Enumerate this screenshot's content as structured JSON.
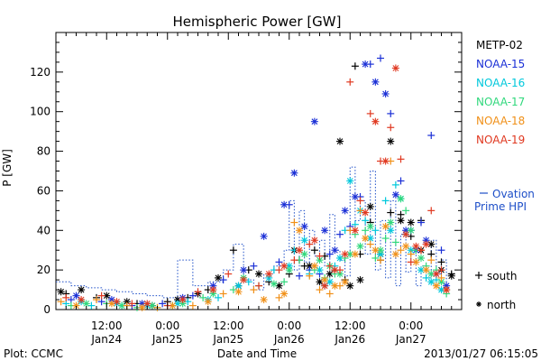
{
  "chart_data": {
    "type": "scatter",
    "title": "Hemispheric Power [GW]",
    "xlabel": "Date and Time",
    "ylabel": "P [GW]",
    "xlim": [
      -22,
      58
    ],
    "ylim": [
      0,
      140
    ],
    "x_units": "hours from 2013-01-25 00:00",
    "yticks": [
      0,
      20,
      40,
      60,
      80,
      100,
      120
    ],
    "xticks": [
      {
        "x": -12,
        "time": "12:00",
        "date": "Jan24"
      },
      {
        "x": 0,
        "time": "0:00",
        "date": "Jan25"
      },
      {
        "x": 12,
        "time": "12:00",
        "date": "Jan25"
      },
      {
        "x": 24,
        "time": "0:00",
        "date": "Jan26"
      },
      {
        "x": 36,
        "time": "12:00",
        "date": "Jan26"
      },
      {
        "x": 48,
        "time": "0:00",
        "date": "Jan27"
      }
    ],
    "legend": {
      "placement": "right",
      "series_label": "Ovation Prime HPI",
      "south_label": "south",
      "north_label": "north"
    },
    "footer": {
      "left": "Plot: CCMC",
      "right": "2013/01/27 06:15:05"
    },
    "ovation": {
      "name": "Ovation Prime HPI",
      "color": "#1e4fc8",
      "x": [
        -22,
        -19,
        -16,
        -13,
        -10,
        -7,
        -4,
        -1,
        2,
        5,
        8,
        11,
        13,
        15,
        17,
        19,
        21,
        23,
        24,
        25,
        26,
        27,
        28,
        29,
        30,
        31,
        32,
        33,
        34,
        35,
        36,
        37,
        38,
        39,
        40,
        41,
        42,
        43,
        44,
        45,
        46,
        47,
        48,
        49,
        50,
        51,
        52,
        53,
        54,
        55
      ],
      "y": [
        14,
        12,
        11,
        10,
        9,
        8,
        7,
        6,
        25,
        12,
        14,
        20,
        33,
        15,
        10,
        18,
        22,
        30,
        55,
        20,
        50,
        24,
        40,
        27,
        35,
        22,
        48,
        30,
        25,
        17,
        72,
        45,
        55,
        28,
        70,
        20,
        45,
        16,
        55,
        12,
        38,
        19,
        30,
        12,
        22,
        16,
        35,
        18,
        25,
        8
      ]
    },
    "series": [
      {
        "name": "METP-02",
        "color": "#000000",
        "south": [
          [
            -20,
            8
          ],
          [
            -14,
            6
          ],
          [
            -6,
            3
          ],
          [
            0,
            4
          ],
          [
            4,
            6
          ],
          [
            8,
            10
          ],
          [
            13,
            30
          ],
          [
            16,
            20
          ],
          [
            20,
            14
          ],
          [
            24,
            18
          ],
          [
            26,
            25
          ],
          [
            27,
            22
          ],
          [
            29,
            30
          ],
          [
            31,
            27
          ],
          [
            33,
            20
          ],
          [
            35,
            15
          ],
          [
            37,
            123
          ],
          [
            38,
            28
          ],
          [
            40,
            44
          ],
          [
            42,
            25
          ],
          [
            44,
            49
          ],
          [
            46,
            48
          ],
          [
            48,
            37
          ],
          [
            50,
            45
          ],
          [
            52,
            28
          ],
          [
            54,
            24
          ],
          [
            56,
            18
          ]
        ],
        "north": [
          [
            -21,
            9
          ],
          [
            -17,
            10
          ],
          [
            -12,
            7
          ],
          [
            -8,
            4
          ],
          [
            -3,
            2
          ],
          [
            2,
            5
          ],
          [
            6,
            8
          ],
          [
            10,
            16
          ],
          [
            14,
            12
          ],
          [
            18,
            18
          ],
          [
            22,
            12
          ],
          [
            25,
            30
          ],
          [
            28,
            22
          ],
          [
            30,
            14
          ],
          [
            32,
            18
          ],
          [
            34,
            85
          ],
          [
            36,
            12
          ],
          [
            38,
            15
          ],
          [
            40,
            52
          ],
          [
            42,
            28
          ],
          [
            44,
            85
          ],
          [
            46,
            45
          ],
          [
            48,
            44
          ],
          [
            50,
            30
          ],
          [
            52,
            33
          ],
          [
            54,
            20
          ],
          [
            56,
            17
          ]
        ]
      },
      {
        "name": "NOAA-15",
        "color": "#1a2fd6",
        "south": [
          [
            -19,
            5
          ],
          [
            -13,
            4
          ],
          [
            -7,
            2
          ],
          [
            -1,
            3
          ],
          [
            5,
            7
          ],
          [
            11,
            15
          ],
          [
            17,
            22
          ],
          [
            22,
            24
          ],
          [
            24,
            53
          ],
          [
            26,
            17
          ],
          [
            28,
            20
          ],
          [
            30,
            18
          ],
          [
            32,
            28
          ],
          [
            34,
            38
          ],
          [
            36,
            42
          ],
          [
            38,
            57
          ],
          [
            40,
            124
          ],
          [
            42,
            127
          ],
          [
            44,
            99
          ],
          [
            46,
            65
          ],
          [
            48,
            40
          ],
          [
            50,
            44
          ],
          [
            52,
            88
          ],
          [
            54,
            30
          ]
        ],
        "north": [
          [
            -18,
            7
          ],
          [
            -11,
            5
          ],
          [
            -5,
            3
          ],
          [
            3,
            6
          ],
          [
            9,
            12
          ],
          [
            15,
            20
          ],
          [
            19,
            37
          ],
          [
            23,
            53
          ],
          [
            25,
            69
          ],
          [
            27,
            42
          ],
          [
            29,
            95
          ],
          [
            31,
            40
          ],
          [
            33,
            30
          ],
          [
            35,
            50
          ],
          [
            37,
            57
          ],
          [
            39,
            124
          ],
          [
            41,
            115
          ],
          [
            43,
            109
          ],
          [
            45,
            58
          ],
          [
            47,
            40
          ],
          [
            49,
            30
          ],
          [
            51,
            35
          ],
          [
            53,
            18
          ],
          [
            55,
            12
          ]
        ]
      },
      {
        "name": "NOAA-16",
        "color": "#00c8dc",
        "south": [
          [
            -20,
            3
          ],
          [
            -15,
            2
          ],
          [
            -9,
            2
          ],
          [
            -2,
            1
          ],
          [
            4,
            4
          ],
          [
            10,
            6
          ],
          [
            16,
            14
          ],
          [
            21,
            20
          ],
          [
            25,
            30
          ],
          [
            28,
            18
          ],
          [
            31,
            12
          ],
          [
            33,
            22
          ],
          [
            35,
            40
          ],
          [
            37,
            43
          ],
          [
            39,
            45
          ],
          [
            41,
            40
          ],
          [
            43,
            55
          ],
          [
            45,
            63
          ],
          [
            47,
            38
          ],
          [
            49,
            30
          ],
          [
            51,
            16
          ],
          [
            53,
            15
          ],
          [
            55,
            10
          ]
        ],
        "north": [
          [
            -17,
            4
          ],
          [
            -10,
            3
          ],
          [
            -4,
            2
          ],
          [
            2,
            3
          ],
          [
            8,
            5
          ],
          [
            14,
            12
          ],
          [
            20,
            16
          ],
          [
            24,
            22
          ],
          [
            27,
            35
          ],
          [
            30,
            20
          ],
          [
            32,
            14
          ],
          [
            34,
            26
          ],
          [
            36,
            65
          ],
          [
            38,
            50
          ],
          [
            40,
            36
          ],
          [
            42,
            28
          ],
          [
            44,
            40
          ],
          [
            46,
            56
          ],
          [
            48,
            30
          ],
          [
            50,
            20
          ],
          [
            52,
            14
          ],
          [
            54,
            10
          ]
        ]
      },
      {
        "name": "NOAA-17",
        "color": "#30d87c",
        "south": [
          [
            -19,
            2
          ],
          [
            -12,
            3
          ],
          [
            -6,
            1
          ],
          [
            1,
            2
          ],
          [
            7,
            6
          ],
          [
            13,
            10
          ],
          [
            18,
            12
          ],
          [
            23,
            14
          ],
          [
            26,
            25
          ],
          [
            29,
            20
          ],
          [
            31,
            16
          ],
          [
            33,
            18
          ],
          [
            35,
            26
          ],
          [
            37,
            38
          ],
          [
            39,
            40
          ],
          [
            41,
            26
          ],
          [
            43,
            36
          ],
          [
            45,
            34
          ],
          [
            47,
            50
          ],
          [
            49,
            30
          ],
          [
            51,
            22
          ],
          [
            53,
            20
          ],
          [
            55,
            8
          ]
        ],
        "north": [
          [
            -16,
            3
          ],
          [
            -9,
            2
          ],
          [
            -3,
            2
          ],
          [
            3,
            3
          ],
          [
            9,
            8
          ],
          [
            15,
            16
          ],
          [
            21,
            13
          ],
          [
            24,
            20
          ],
          [
            27,
            28
          ],
          [
            30,
            25
          ],
          [
            32,
            22
          ],
          [
            34,
            18
          ],
          [
            36,
            28
          ],
          [
            38,
            32
          ],
          [
            40,
            42
          ],
          [
            42,
            30
          ],
          [
            44,
            44
          ],
          [
            46,
            56
          ],
          [
            48,
            40
          ],
          [
            50,
            26
          ],
          [
            52,
            18
          ],
          [
            54,
            14
          ]
        ]
      },
      {
        "name": "NOAA-18",
        "color": "#f09018",
        "south": [
          [
            -21,
            4
          ],
          [
            -14,
            5
          ],
          [
            -8,
            2
          ],
          [
            -2,
            1
          ],
          [
            5,
            2
          ],
          [
            11,
            8
          ],
          [
            17,
            10
          ],
          [
            22,
            6
          ],
          [
            25,
            44
          ],
          [
            28,
            17
          ],
          [
            30,
            10
          ],
          [
            32,
            8
          ],
          [
            34,
            12
          ],
          [
            36,
            40
          ],
          [
            38,
            50
          ],
          [
            40,
            33
          ],
          [
            42,
            25
          ],
          [
            44,
            75
          ],
          [
            46,
            30
          ],
          [
            48,
            28
          ],
          [
            50,
            30
          ],
          [
            52,
            25
          ],
          [
            54,
            16
          ]
        ],
        "north": [
          [
            -18,
            2
          ],
          [
            -11,
            3
          ],
          [
            -5,
            1
          ],
          [
            1,
            2
          ],
          [
            8,
            4
          ],
          [
            14,
            9
          ],
          [
            19,
            5
          ],
          [
            23,
            8
          ],
          [
            26,
            40
          ],
          [
            29,
            22
          ],
          [
            31,
            15
          ],
          [
            33,
            12
          ],
          [
            35,
            14
          ],
          [
            37,
            28
          ],
          [
            39,
            36
          ],
          [
            41,
            30
          ],
          [
            43,
            42
          ],
          [
            45,
            28
          ],
          [
            47,
            32
          ],
          [
            49,
            24
          ],
          [
            51,
            20
          ],
          [
            53,
            12
          ],
          [
            55,
            10
          ]
        ]
      },
      {
        "name": "NOAA-19",
        "color": "#e03820",
        "south": [
          [
            -20,
            6
          ],
          [
            -13,
            7
          ],
          [
            -7,
            3
          ],
          [
            0,
            2
          ],
          [
            6,
            9
          ],
          [
            12,
            18
          ],
          [
            18,
            12
          ],
          [
            22,
            20
          ],
          [
            25,
            25
          ],
          [
            28,
            33
          ],
          [
            30,
            27
          ],
          [
            32,
            22
          ],
          [
            34,
            20
          ],
          [
            36,
            115
          ],
          [
            38,
            55
          ],
          [
            40,
            99
          ],
          [
            42,
            75
          ],
          [
            44,
            92
          ],
          [
            46,
            76
          ],
          [
            48,
            24
          ],
          [
            50,
            30
          ],
          [
            52,
            50
          ],
          [
            54,
            20
          ]
        ],
        "north": [
          [
            -17,
            5
          ],
          [
            -10,
            4
          ],
          [
            -4,
            3
          ],
          [
            3,
            5
          ],
          [
            9,
            10
          ],
          [
            15,
            15
          ],
          [
            20,
            18
          ],
          [
            23,
            22
          ],
          [
            26,
            30
          ],
          [
            29,
            35
          ],
          [
            31,
            12
          ],
          [
            33,
            20
          ],
          [
            35,
            28
          ],
          [
            37,
            40
          ],
          [
            39,
            49
          ],
          [
            41,
            95
          ],
          [
            43,
            75
          ],
          [
            45,
            122
          ],
          [
            47,
            38
          ],
          [
            49,
            32
          ],
          [
            51,
            33
          ],
          [
            53,
            18
          ],
          [
            55,
            10
          ]
        ]
      }
    ]
  }
}
